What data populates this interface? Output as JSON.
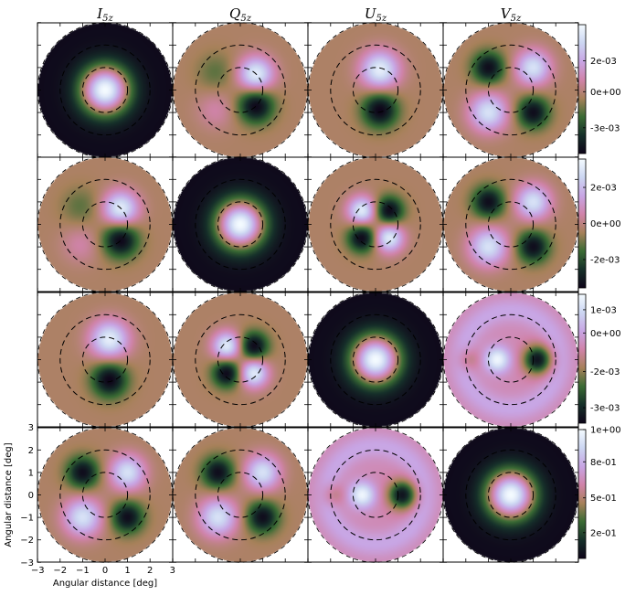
{
  "chart_data": {
    "type": "heatmap",
    "description_grid": "4x4 Mueller-like matrix of polarization beam maps",
    "columns": [
      {
        "main": "I",
        "sub": "5z"
      },
      {
        "main": "Q",
        "sub": "5z"
      },
      {
        "main": "U",
        "sub": "5z"
      },
      {
        "main": "V",
        "sub": "5z"
      }
    ],
    "xlabel": "Angular distance [deg]",
    "ylabel": "Angular distance [deg]",
    "xlim": [
      -3,
      3
    ],
    "ylim": [
      -3,
      3
    ],
    "xticks": [
      "−3",
      "−2",
      "−1",
      "0",
      "1",
      "2",
      "3"
    ],
    "yticks": [
      "3",
      "2",
      "1",
      "0",
      "−1",
      "−2",
      "−3"
    ],
    "colormap": "cubehelix",
    "colormap_stops": [
      "#0e0419",
      "#16302a",
      "#3a6b34",
      "#a7815a",
      "#d083a9",
      "#c8a5e4",
      "#ccd6f2",
      "#f4fbff"
    ],
    "dashed_circle_radii_deg": [
      1.0,
      2.0
    ],
    "panels": [
      [
        {
          "pattern": "ring",
          "scale": 1
        },
        {
          "pattern": "quad",
          "rot": 0,
          "scale": 1
        },
        {
          "pattern": "halfring",
          "rot": 0,
          "scale": 1
        },
        {
          "pattern": "quad8",
          "rot": 0,
          "scale": 1
        }
      ],
      [
        {
          "pattern": "quad",
          "rot": 0,
          "scale": 1
        },
        {
          "pattern": "ring",
          "scale": 1
        },
        {
          "pattern": "clover",
          "rot": 0,
          "scale": 1
        },
        {
          "pattern": "quad8",
          "rot": 0,
          "scale": 1
        }
      ],
      [
        {
          "pattern": "halfring",
          "rot": 0,
          "scale": 1
        },
        {
          "pattern": "clover",
          "rot": 0,
          "scale": 1
        },
        {
          "pattern": "ring",
          "scale": 1
        },
        {
          "pattern": "diptwo",
          "scale": 1
        }
      ],
      [
        {
          "pattern": "quad8",
          "rot": 0,
          "scale": 1
        },
        {
          "pattern": "quad8",
          "rot": 0,
          "scale": 1
        },
        {
          "pattern": "diptwo",
          "scale": 1
        },
        {
          "pattern": "ring",
          "scale": 1
        }
      ]
    ],
    "colorbars": [
      {
        "ticks": [
          "2e-03",
          "0e+00",
          "-3e-03"
        ],
        "tick_values": [
          0.72,
          0.48,
          0.2
        ]
      },
      {
        "ticks": [
          "2e-03",
          "0e+00",
          "-2e-03"
        ],
        "tick_values": [
          0.78,
          0.5,
          0.22
        ]
      },
      {
        "ticks": [
          "1e-03",
          "0e+00",
          "-2e-03",
          "-3e-03"
        ],
        "tick_values": [
          0.88,
          0.7,
          0.4,
          0.12
        ]
      },
      {
        "ticks": [
          "1e+00",
          "8e-01",
          "5e-01",
          "2e-01"
        ],
        "tick_values": [
          1.0,
          0.75,
          0.47,
          0.2
        ]
      }
    ]
  }
}
